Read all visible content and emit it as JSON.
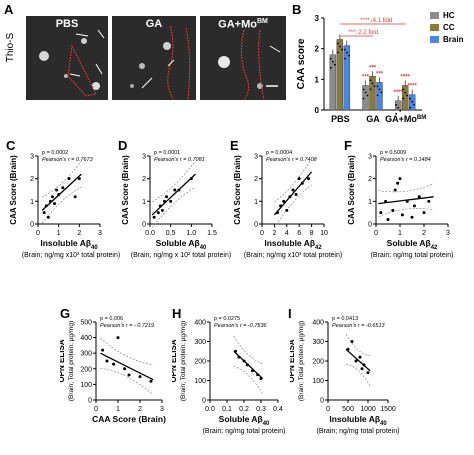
{
  "panelA": {
    "letter": "A",
    "stain_label": "Thio-S",
    "micrographs": [
      {
        "title": "PBS"
      },
      {
        "title": "GA"
      },
      {
        "title": "GA+Mo",
        "title_sup": "BM"
      }
    ]
  },
  "panelB": {
    "letter": "B",
    "legend": [
      {
        "label": "HC",
        "color": "#8c8c8c"
      },
      {
        "label": "CC",
        "color": "#8a7a3a"
      },
      {
        "label": "Brain",
        "color": "#4a86e8"
      }
    ],
    "annotations": [
      "****↓4.1 fold",
      "***↓2.2 fold"
    ],
    "stars": [
      "***",
      "***",
      "***",
      "****",
      "****",
      "****"
    ]
  },
  "colors": {
    "bar_hc": "#8c8c8c",
    "bar_cc": "#8a7a3a",
    "bar_brain": "#4a86e8",
    "significance": "#e53935"
  },
  "chart_data": [
    {
      "panel": "B",
      "type": "bar",
      "categories": [
        "PBS",
        "GA",
        "GA+Mo"
      ],
      "category_sup": [
        "",
        "",
        "BM"
      ],
      "series": [
        {
          "name": "HC",
          "values": [
            1.8,
            0.8,
            0.3
          ]
        },
        {
          "name": "CC",
          "values": [
            2.3,
            1.1,
            0.8
          ]
        },
        {
          "name": "Brain",
          "values": [
            2.1,
            0.9,
            0.5
          ]
        }
      ],
      "ylabel": "CAA score",
      "ylim": [
        0,
        3
      ],
      "yticks": [
        "0",
        "1",
        "2",
        "3"
      ]
    },
    {
      "panel": "C",
      "type": "scatter",
      "stats": [
        "p = 0.0002",
        "Pearson's r = 0.7673"
      ],
      "xlabel": "Insoluble Aβ",
      "xlabel_sub": "40",
      "xlabel2": "(Brain; ng/mg x10³ total protein)",
      "ylabel": "CAA Score (Brain)",
      "xlim": [
        0,
        3
      ],
      "ylim": [
        0,
        3
      ],
      "xticks": [
        "0",
        "1",
        "2",
        "3"
      ],
      "yticks": [
        "0",
        "1",
        "2",
        "3"
      ],
      "x": [
        0.3,
        0.4,
        0.5,
        0.6,
        0.7,
        0.8,
        0.9,
        1.0,
        1.2,
        1.5,
        1.8,
        2.0
      ],
      "y": [
        0.5,
        0.8,
        0.3,
        1.0,
        1.2,
        0.9,
        1.5,
        1.3,
        1.6,
        2.0,
        1.2,
        2.0
      ],
      "fit": [
        [
          0.2,
          0.6
        ],
        [
          2.1,
          2.2
        ]
      ]
    },
    {
      "panel": "D",
      "type": "scatter",
      "stats": [
        "p = 0.0001",
        "Pearson's r = 0.7081"
      ],
      "xlabel": "Soluble Aβ",
      "xlabel_sub": "40",
      "xlabel2": "(Brain; ng/mg x 10² total protein)",
      "ylabel": "CAA Score (Brain)",
      "xlim": [
        0,
        1.5
      ],
      "ylim": [
        0,
        3
      ],
      "xticks": [
        "0.0",
        "0.5",
        "1.0",
        "1.5"
      ],
      "yticks": [
        "0",
        "1",
        "2",
        "3"
      ],
      "x": [
        0.1,
        0.2,
        0.25,
        0.3,
        0.35,
        0.4,
        0.5,
        0.6,
        0.7,
        1.0
      ],
      "y": [
        0.3,
        0.5,
        0.8,
        0.6,
        1.0,
        1.2,
        1.0,
        1.5,
        1.5,
        2.0
      ],
      "fit": [
        [
          0.05,
          0.4
        ],
        [
          1.1,
          2.2
        ]
      ]
    },
    {
      "panel": "E",
      "type": "scatter",
      "stats": [
        "p = 0.0004",
        "Pearson's r = 0.7408"
      ],
      "xlabel": "Insoluble Aβ",
      "xlabel_sub": "42",
      "xlabel2": "(Brain; ng/mg x10³ total protein)",
      "ylabel": "CAA Score (Brain)",
      "xlim": [
        0,
        10
      ],
      "ylim": [
        0,
        3
      ],
      "xticks": [
        "0",
        "2",
        "4",
        "6",
        "8",
        "10"
      ],
      "yticks": [
        "0",
        "1",
        "2",
        "3"
      ],
      "x": [
        2.5,
        3.0,
        3.5,
        4.0,
        4.5,
        5.0,
        5.5,
        6.0,
        6.5,
        7.5
      ],
      "y": [
        0.5,
        0.8,
        1.0,
        0.6,
        1.2,
        1.5,
        1.3,
        2.0,
        1.8,
        2.0
      ],
      "fit": [
        [
          2.0,
          0.4
        ],
        [
          8.0,
          2.3
        ]
      ]
    },
    {
      "panel": "F",
      "type": "scatter",
      "stats": [
        "p = 0.5009",
        "Pearson's r = 0.1484"
      ],
      "xlabel": "Soluble Aβ",
      "xlabel_sub": "42",
      "xlabel2": "(Brain; ng/mg total protein)",
      "ylabel": "CAA Score (Brain)",
      "xlim": [
        0,
        3
      ],
      "ylim": [
        0,
        3
      ],
      "xticks": [
        "0",
        "1",
        "2",
        "3"
      ],
      "yticks": [
        "0",
        "1",
        "2",
        "3"
      ],
      "x": [
        0.2,
        0.4,
        0.5,
        0.7,
        0.8,
        1.0,
        1.1,
        1.3,
        1.5,
        1.8,
        2.0,
        2.2,
        0.9,
        1.6
      ],
      "y": [
        0.5,
        1.0,
        0.2,
        0.6,
        1.5,
        2.0,
        0.4,
        1.0,
        0.3,
        1.2,
        0.5,
        1.0,
        1.8,
        0.8
      ],
      "fit": [
        [
          0.1,
          0.9
        ],
        [
          2.4,
          1.2
        ]
      ]
    },
    {
      "panel": "G",
      "type": "scatter",
      "stats": [
        "p = 0.006",
        "Pearson's r = - 0.7219"
      ],
      "xlabel": "CAA Score (Brain)",
      "xlabel_sub": "",
      "xlabel2": "",
      "ylabel": "OPN ELISA",
      "ylabel2": "(Brain; Total protein; μg/mg)",
      "xlim": [
        0,
        3
      ],
      "ylim": [
        0,
        500
      ],
      "xticks": [
        "0",
        "1",
        "2",
        "3"
      ],
      "yticks": [
        "0",
        "100",
        "200",
        "300",
        "400",
        "500"
      ],
      "x": [
        0.3,
        0.5,
        0.8,
        1.0,
        1.3,
        1.5,
        2.0,
        2.5
      ],
      "y": [
        320,
        250,
        230,
        400,
        200,
        160,
        150,
        120
      ],
      "fit": [
        [
          0.2,
          300
        ],
        [
          2.6,
          130
        ]
      ]
    },
    {
      "panel": "H",
      "type": "scatter",
      "stats": [
        "p = 0.0275",
        "Pearson's r = -0.7536"
      ],
      "xlabel": "Soluble Aβ",
      "xlabel_sub": "40",
      "xlabel2": "(Brain; ng/mg total protein)",
      "ylabel": "OPN ELISA",
      "ylabel2": "(Brain; Total protein; μg/mg)",
      "xlim": [
        0,
        0.4
      ],
      "ylim": [
        0,
        400
      ],
      "xticks": [
        "0.0",
        "0.1",
        "0.2",
        "0.3",
        "0.4"
      ],
      "yticks": [
        "0",
        "100",
        "200",
        "300",
        "400"
      ],
      "x": [
        0.15,
        0.17,
        0.2,
        0.22,
        0.25,
        0.28,
        0.3
      ],
      "y": [
        250,
        220,
        200,
        180,
        150,
        130,
        110
      ],
      "fit": [
        [
          0.14,
          250
        ],
        [
          0.31,
          110
        ]
      ]
    },
    {
      "panel": "I",
      "type": "scatter",
      "stats": [
        "p = 0.0413",
        "Pearson's r = -0.6513"
      ],
      "xlabel": "Insoluble Aβ",
      "xlabel_sub": "40",
      "xlabel2": "(Brain; ng/mg total protein)",
      "ylabel": "OPN ELISA",
      "ylabel2": "(Brain; Total protein; μg/mg)",
      "xlim": [
        0,
        1500
      ],
      "ylim": [
        0,
        400
      ],
      "xticks": [
        "0",
        "500",
        "1000",
        "1500"
      ],
      "yticks": [
        "0",
        "100",
        "200",
        "300",
        "400"
      ],
      "x": [
        500,
        600,
        700,
        800,
        850,
        900,
        1000
      ],
      "y": [
        260,
        300,
        200,
        220,
        160,
        180,
        140
      ],
      "fit": [
        [
          450,
          260
        ],
        [
          1050,
          150
        ]
      ]
    }
  ]
}
